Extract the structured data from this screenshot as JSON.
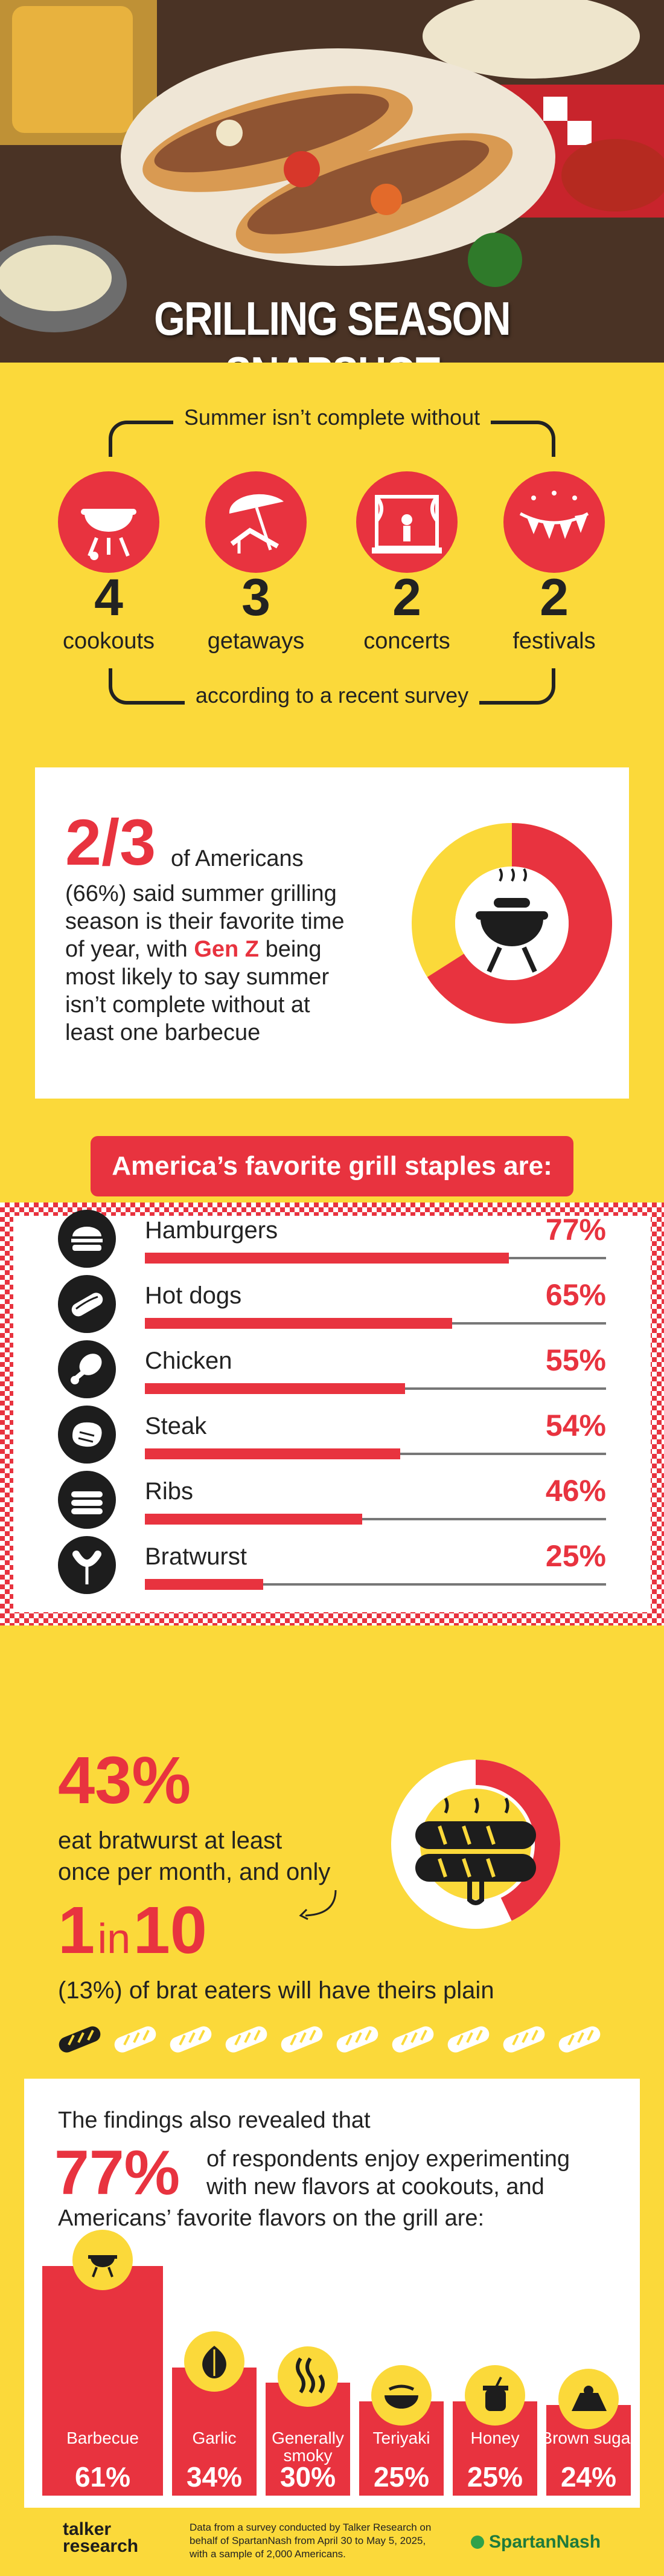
{
  "title": "GRILLING SEASON SNAPSHOT",
  "intro": {
    "header": "Summer isn’t complete without",
    "footer": "according to a recent survey",
    "items": [
      {
        "icon": "grill-icon",
        "number": "4",
        "label": "cookouts"
      },
      {
        "icon": "beach-chair-icon",
        "number": "3",
        "label": "getaways"
      },
      {
        "icon": "stage-icon",
        "number": "2",
        "label": "concerts"
      },
      {
        "icon": "festival-bunting-icon",
        "number": "2",
        "label": "festivals"
      }
    ]
  },
  "favorite_season": {
    "big": "2/3",
    "text_1": "of Americans",
    "text_2": "(66%) said summer grilling",
    "text_3": "season is their favorite time",
    "text_4a": "of year, with ",
    "text_4b": "Gen Z",
    "text_4c": " being",
    "text_5": "most likely to say summer",
    "text_6": "isn’t complete without at",
    "text_7": "least one barbecue",
    "donut_fraction": 0.66
  },
  "colors": {
    "red": "#e8333f",
    "yellow": "#fbd93a",
    "dark": "#1d1d1d"
  },
  "chart_data": [
    {
      "type": "bar",
      "title": "America’s favorite grill staples are:",
      "categories": [
        "Hamburgers",
        "Hot dogs",
        "Chicken",
        "Steak",
        "Ribs",
        "Bratwurst"
      ],
      "values": [
        77,
        65,
        55,
        54,
        46,
        25
      ],
      "labels": [
        "77%",
        "65%",
        "55%",
        "54%",
        "46%",
        "25%"
      ],
      "icons": [
        "burger-icon",
        "hot-dog-icon",
        "drumstick-icon",
        "steak-icon",
        "ribs-icon",
        "bratwurst-icon"
      ]
    },
    {
      "type": "bar",
      "title": "",
      "categories": [
        "Barbecue",
        "Garlic",
        "Generally smoky",
        "Teriyaki",
        "Honey",
        "Brown sugar"
      ],
      "values": [
        61,
        34,
        30,
        25,
        25,
        24
      ],
      "labels": [
        "61%",
        "34%",
        "30%",
        "25%",
        "25%",
        "24%"
      ],
      "icons": [
        "grill-icon",
        "garlic-icon",
        "smoke-icon",
        "teriyaki-bowl-icon",
        "honey-pot-icon",
        "brown-sugar-icon"
      ]
    }
  ],
  "bratwurst": {
    "big": "43%",
    "text_1": "eat bratwurst at least",
    "text_2": "once per month, and only",
    "ratio_a": "1",
    "ratio_in": "in",
    "ratio_b": "10",
    "text_3": "(13%) of brat eaters will have theirs plain",
    "donut_fraction": 0.43,
    "plain_count": 1,
    "total_count": 10
  },
  "flavors": {
    "text_1": "The findings also revealed that",
    "big": "77%",
    "text_2": "of respondents enjoy experimenting",
    "text_3": "with new flavors at cookouts, and",
    "text_4": "Americans’ favorite flavors on the grill are:"
  },
  "footer": {
    "logo_left_1": "talker",
    "logo_left_2": "research",
    "note_1": "Data from a survey conducted by Talker Research on",
    "note_2": "behalf of SpartanNash from April 30 to May 5, 2025,",
    "note_3": "with a sample of 2,000 Americans.",
    "logo_right": "SpartanNash"
  }
}
